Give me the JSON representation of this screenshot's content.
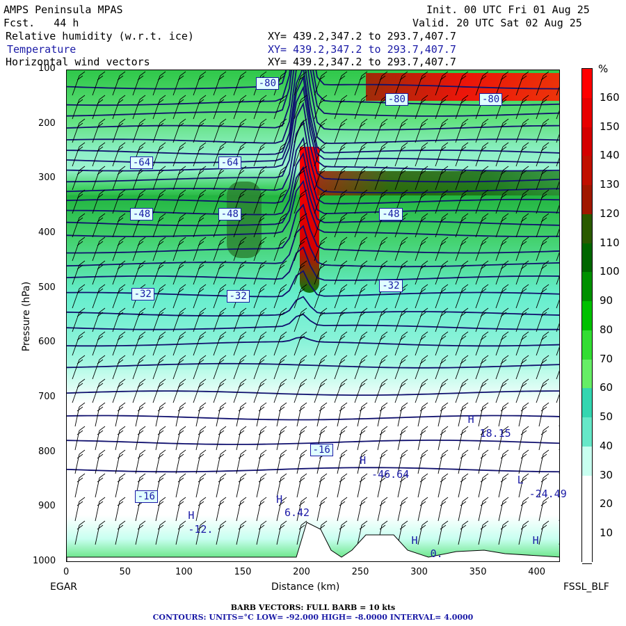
{
  "header": {
    "model": "AMPS Peninsula MPAS",
    "fcst": "Fcst.   44 h",
    "init": "Init. 00 UTC Fri 01 Aug 25",
    "valid": "Valid. 20 UTC Sat 02 Aug 25",
    "fields": [
      {
        "name": "Relative humidity (w.r.t. ice)",
        "xy": "XY= 439.2,347.2 to 293.7,407.7"
      },
      {
        "name": "Temperature",
        "xy": "XY= 439.2,347.2 to 293.7,407.7"
      },
      {
        "name": "Horizontal wind vectors",
        "xy": "XY= 439.2,347.2 to 293.7,407.7"
      }
    ]
  },
  "axes": {
    "ylabel": "Pressure (hPa)",
    "xlabel": "Distance (km)",
    "left_station": "EGAR",
    "right_station": "FSSL_BLF"
  },
  "colorbar": {
    "unit": "%",
    "labels": [
      "160",
      "150",
      "140",
      "130",
      "120",
      "110",
      "100",
      "90",
      "80",
      "70",
      "60",
      "50",
      "40",
      "30",
      "20",
      "10"
    ],
    "colors": [
      "#ff0000",
      "#e80000",
      "#d40000",
      "#c01000",
      "#a01800",
      "#2a5a00",
      "#006600",
      "#009000",
      "#00c000",
      "#33dd33",
      "#66ee66",
      "#33d6b0",
      "#66e8c8",
      "#c8fff0",
      "#ffffff",
      "#ffffff",
      "#ffffff"
    ]
  },
  "footer": {
    "barbs": "BARB VECTORS:  FULL BARB = 10 kts",
    "contours": "CONTOURS:  UNITS=°C  LOW= -92.000      HIGH= -8.0000      INTERVAL=    4.0000"
  },
  "chart_data": {
    "type": "heatmap",
    "title": "Relative humidity (w.r.t. ice) / Temperature / Horizontal wind vectors",
    "xlabel": "Distance (km)",
    "ylabel": "Pressure (hPa)",
    "x_ticks": [
      0,
      50,
      100,
      150,
      200,
      250,
      300,
      350,
      400
    ],
    "y_ticks": [
      100,
      200,
      300,
      400,
      500,
      600,
      700,
      800,
      900,
      1000
    ],
    "xlim": [
      0,
      420
    ],
    "ylim": [
      1000,
      100
    ],
    "temperature_contour_labels": [
      {
        "text": "-80",
        "x": 172,
        "p": 125
      },
      {
        "text": "-80",
        "x": 282,
        "p": 155
      },
      {
        "text": "-80",
        "x": 362,
        "p": 155
      },
      {
        "text": "-64",
        "x": 65,
        "p": 270
      },
      {
        "text": "-64",
        "x": 140,
        "p": 270
      },
      {
        "text": "-48",
        "x": 65,
        "p": 365
      },
      {
        "text": "-48",
        "x": 140,
        "p": 365
      },
      {
        "text": "-48",
        "x": 277,
        "p": 365
      },
      {
        "text": "-32",
        "x": 66,
        "p": 510
      },
      {
        "text": "-32",
        "x": 147,
        "p": 515
      },
      {
        "text": "-32",
        "x": 277,
        "p": 495
      },
      {
        "text": "-16",
        "x": 218,
        "p": 795
      },
      {
        "text": "-16",
        "x": 69,
        "p": 880
      }
    ],
    "extrema_labels": [
      {
        "text": "H",
        "x": 350,
        "p": 740
      },
      {
        "text": "18.15",
        "x": 360,
        "p": 765
      },
      {
        "text": "H",
        "x": 258,
        "p": 815
      },
      {
        "text": "-46.64",
        "x": 268,
        "p": 840
      },
      {
        "text": "L",
        "x": 392,
        "p": 850
      },
      {
        "text": "-24.49",
        "x": 402,
        "p": 875
      },
      {
        "text": "H",
        "x": 187,
        "p": 885
      },
      {
        "text": "6.42",
        "x": 194,
        "p": 910
      },
      {
        "text": "H",
        "x": 112,
        "p": 915
      },
      {
        "text": "-12.",
        "x": 112,
        "p": 940
      },
      {
        "text": "H",
        "x": 302,
        "p": 960
      },
      {
        "text": "H",
        "x": 405,
        "p": 960
      },
      {
        "text": "0.",
        "x": 318,
        "p": 985
      }
    ]
  }
}
